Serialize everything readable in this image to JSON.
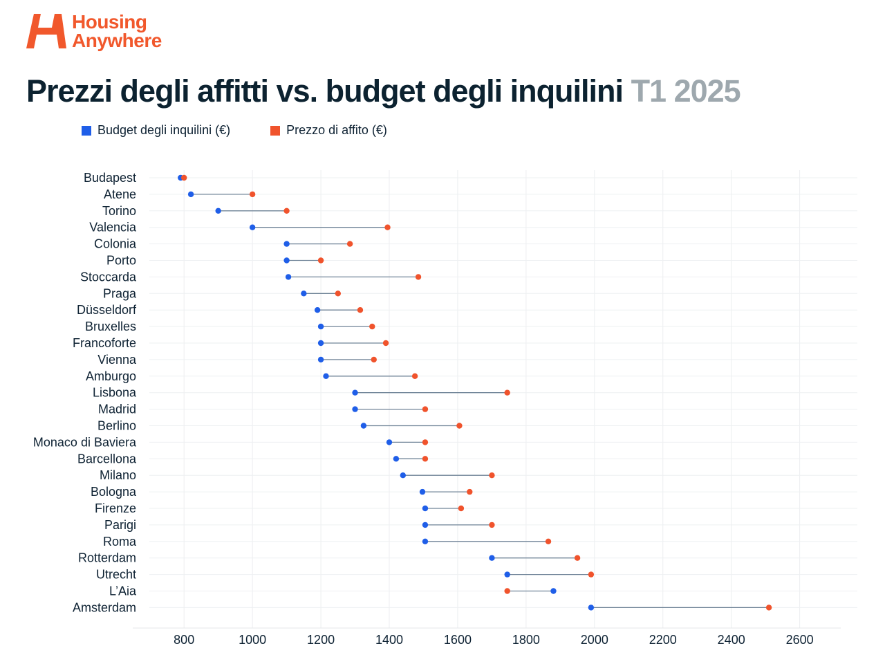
{
  "brand": {
    "line1": "Housing",
    "line2": "Anywhere",
    "color": "#f1582c"
  },
  "header": {
    "title": "Prezzi degli affitti vs. budget degli inquilini",
    "period": "T1 2025"
  },
  "legend": {
    "budget_label": "Budget degli inquilini (€)",
    "price_label": "Prezzo di affito (€)",
    "budget_color": "#1f5ee8",
    "price_color": "#f0532c"
  },
  "chart_data": {
    "type": "dumbbell",
    "title": "Prezzi degli affitti vs. budget degli inquilini T1 2025",
    "xlabel": "",
    "ylabel": "",
    "xlim": [
      650,
      2720
    ],
    "xticks": [
      800,
      1000,
      1200,
      1400,
      1600,
      1800,
      2000,
      2200,
      2400,
      2600
    ],
    "grid": true,
    "categories": [
      "Budapest",
      "Atene",
      "Torino",
      "Valencia",
      "Colonia",
      "Porto",
      "Stoccarda",
      "Praga",
      "Düsseldorf",
      "Bruxelles",
      "Francoforte",
      "Vienna",
      "Amburgo",
      "Lisbona",
      "Madrid",
      "Berlino",
      "Monaco di Baviera",
      "Barcellona",
      "Milano",
      "Bologna",
      "Firenze",
      "Parigi",
      "Roma",
      "Rotterdam",
      "Utrecht",
      "L’Aia",
      "Amsterdam"
    ],
    "series": [
      {
        "name": "Budget degli inquilini (€)",
        "values": [
          790,
          820,
          900,
          1000,
          1100,
          1100,
          1105,
          1150,
          1190,
          1200,
          1200,
          1200,
          1215,
          1300,
          1300,
          1325,
          1400,
          1420,
          1440,
          1497,
          1505,
          1505,
          1505,
          1700,
          1745,
          1880,
          1990
        ]
      },
      {
        "name": "Prezzo di affito (€)",
        "values": [
          800,
          1000,
          1100,
          1395,
          1285,
          1200,
          1485,
          1250,
          1315,
          1350,
          1390,
          1355,
          1475,
          1745,
          1505,
          1605,
          1505,
          1505,
          1700,
          1635,
          1610,
          1700,
          1865,
          1950,
          1990,
          1745,
          2510
        ]
      }
    ]
  }
}
